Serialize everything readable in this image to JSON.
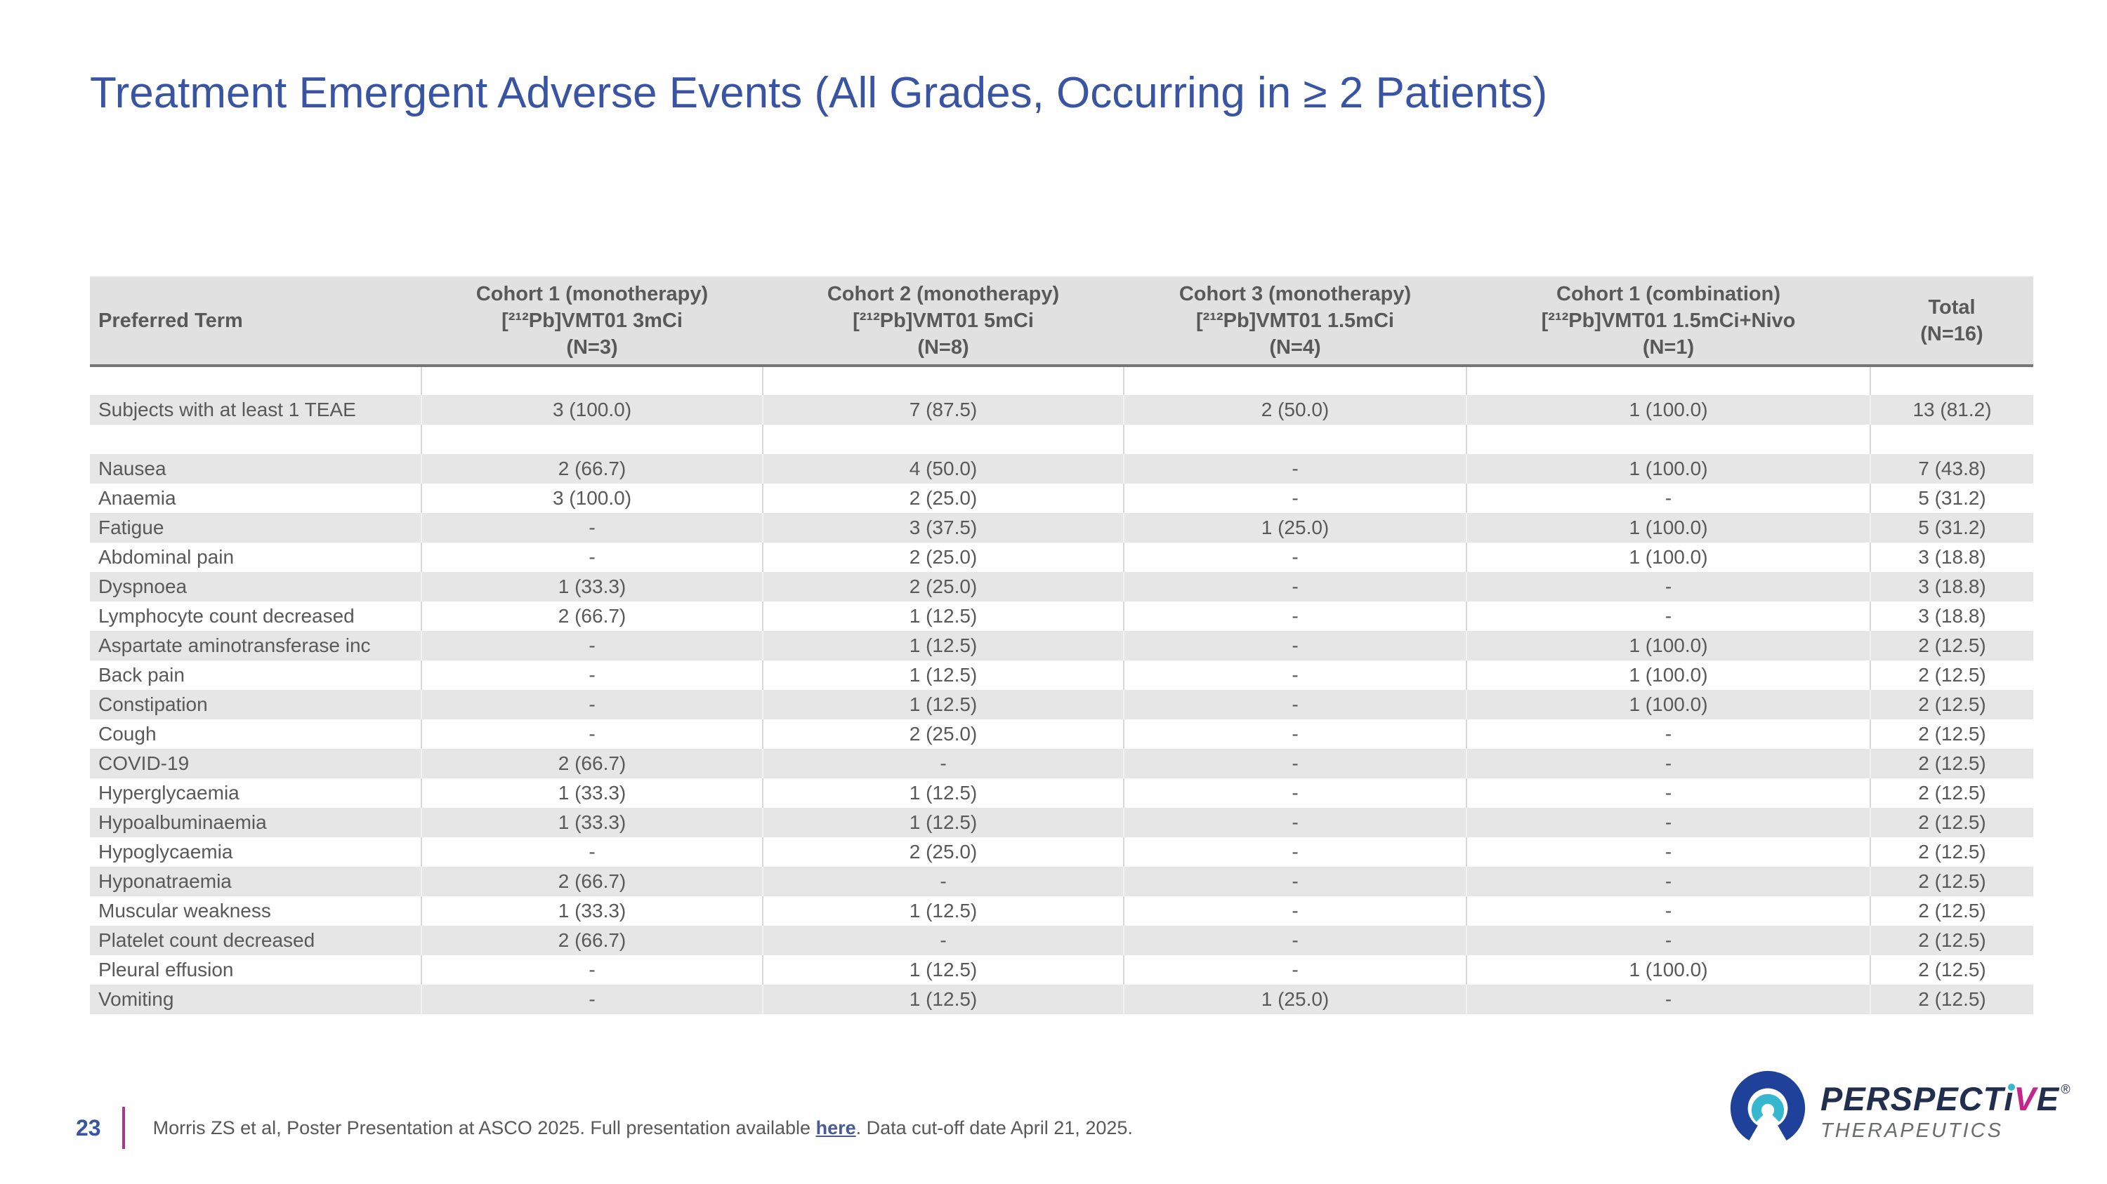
{
  "slide": {
    "title": "Treatment Emergent Adverse Events (All Grades, Occurring in ≥ 2 Patients)"
  },
  "table": {
    "columns": [
      {
        "label": "Preferred Term"
      },
      {
        "label": "Cohort 1 (monotherapy)\n[²¹²Pb]VMT01 3mCi\n(N=3)"
      },
      {
        "label": "Cohort 2 (monotherapy)\n[²¹²Pb]VMT01 5mCi\n(N=8)"
      },
      {
        "label": "Cohort 3 (monotherapy)\n[²¹²Pb]VMT01 1.5mCi\n(N=4)"
      },
      {
        "label": "Cohort 1 (combination)\n[²¹²Pb]VMT01 1.5mCi+Nivo\n(N=1)"
      },
      {
        "label": "Total\n(N=16)"
      }
    ],
    "rows": [
      {
        "cells": [
          "",
          "",
          "",
          "",
          "",
          ""
        ]
      },
      {
        "cells": [
          "Subjects with at least 1 TEAE",
          "3 (100.0)",
          "7 (87.5)",
          "2 (50.0)",
          "1 (100.0)",
          "13 (81.2)"
        ]
      },
      {
        "cells": [
          "",
          "",
          "",
          "",
          "",
          ""
        ]
      },
      {
        "cells": [
          "Nausea",
          "2 (66.7)",
          "4 (50.0)",
          "-",
          "1 (100.0)",
          "7 (43.8)"
        ]
      },
      {
        "cells": [
          "Anaemia",
          "3 (100.0)",
          "2 (25.0)",
          "-",
          "-",
          "5 (31.2)"
        ]
      },
      {
        "cells": [
          "Fatigue",
          "-",
          "3 (37.5)",
          "1 (25.0)",
          "1 (100.0)",
          "5 (31.2)"
        ]
      },
      {
        "cells": [
          "Abdominal pain",
          "-",
          "2 (25.0)",
          "-",
          "1 (100.0)",
          "3 (18.8)"
        ]
      },
      {
        "cells": [
          "Dyspnoea",
          "1 (33.3)",
          "2 (25.0)",
          "-",
          "-",
          "3 (18.8)"
        ]
      },
      {
        "cells": [
          "Lymphocyte count decreased",
          "2 (66.7)",
          "1 (12.5)",
          "-",
          "-",
          "3 (18.8)"
        ]
      },
      {
        "cells": [
          "Aspartate aminotransferase inc",
          "-",
          "1 (12.5)",
          "-",
          "1 (100.0)",
          "2 (12.5)"
        ]
      },
      {
        "cells": [
          "Back pain",
          "-",
          "1 (12.5)",
          "-",
          "1 (100.0)",
          "2 (12.5)"
        ]
      },
      {
        "cells": [
          "Constipation",
          "-",
          "1 (12.5)",
          "-",
          "1 (100.0)",
          "2 (12.5)"
        ]
      },
      {
        "cells": [
          "Cough",
          "-",
          "2 (25.0)",
          "-",
          "-",
          "2 (12.5)"
        ]
      },
      {
        "cells": [
          "COVID-19",
          "2 (66.7)",
          "-",
          "-",
          "-",
          "2 (12.5)"
        ]
      },
      {
        "cells": [
          "Hyperglycaemia",
          "1 (33.3)",
          "1 (12.5)",
          "-",
          "-",
          "2 (12.5)"
        ]
      },
      {
        "cells": [
          "Hypoalbuminaemia",
          "1 (33.3)",
          "1 (12.5)",
          "-",
          "-",
          "2 (12.5)"
        ]
      },
      {
        "cells": [
          "Hypoglycaemia",
          "-",
          "2 (25.0)",
          "-",
          "-",
          "2 (12.5)"
        ]
      },
      {
        "cells": [
          "Hyponatraemia",
          "2 (66.7)",
          "-",
          "-",
          "-",
          "2 (12.5)"
        ]
      },
      {
        "cells": [
          "Muscular weakness",
          "1 (33.3)",
          "1 (12.5)",
          "-",
          "-",
          "2 (12.5)"
        ]
      },
      {
        "cells": [
          "Platelet count decreased",
          "2 (66.7)",
          "-",
          "-",
          "-",
          "2 (12.5)"
        ]
      },
      {
        "cells": [
          "Pleural effusion",
          "-",
          "1 (12.5)",
          "-",
          "1 (100.0)",
          "2 (12.5)"
        ]
      },
      {
        "cells": [
          "Vomiting",
          "-",
          "1 (12.5)",
          "1 (25.0)",
          "-",
          "2 (12.5)"
        ]
      }
    ]
  },
  "footer": {
    "page_number": "23",
    "citation_pre": "Morris ZS et al, Poster Presentation at ASCO 2025. Full presentation available ",
    "citation_link": "here",
    "citation_post": ". Data cut-off date April 21, 2025."
  },
  "logo": {
    "wordmark_pre": "PERSPECT",
    "wordmark_i": "i",
    "wordmark_v": "V",
    "wordmark_e": "E",
    "registered": "®",
    "subtext": "THERAPEUTICS"
  },
  "colors": {
    "title_blue": "#3A54A4",
    "table_header_bg": "#e1e1e1",
    "table_shaded_row_bg": "#e6e6e6",
    "table_text": "#595959",
    "header_rule": "#767676",
    "footer_divider_magenta": "#A8388E",
    "link_blue": "#4A5A96",
    "logo_navy": "#222E4E",
    "logo_blue": "#20419A",
    "logo_teal": "#35B8CE",
    "logo_magenta": "#C4268E",
    "logo_gray": "#6A6C6E"
  }
}
